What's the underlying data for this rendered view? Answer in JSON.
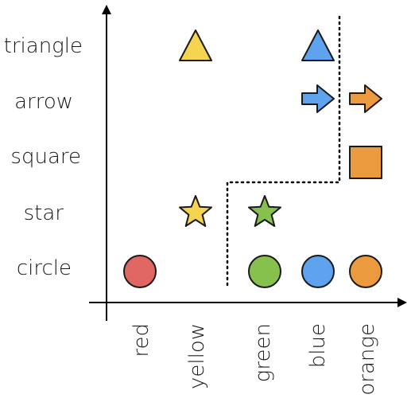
{
  "rows": [
    {
      "key": "triangle",
      "label": "triangle"
    },
    {
      "key": "arrow",
      "label": "arrow"
    },
    {
      "key": "square",
      "label": "square"
    },
    {
      "key": "star",
      "label": "star"
    },
    {
      "key": "circle",
      "label": "circle"
    }
  ],
  "columns": [
    {
      "key": "red",
      "label": "red",
      "color": "#e06763"
    },
    {
      "key": "yellow",
      "label": "yellow",
      "color": "#f5d54f"
    },
    {
      "key": "green",
      "label": "green",
      "color": "#86c14d"
    },
    {
      "key": "blue",
      "label": "blue",
      "color": "#5fa2ee"
    },
    {
      "key": "orange",
      "label": "orange",
      "color": "#ec9a3e"
    }
  ],
  "items": [
    {
      "shape": "triangle",
      "color": "yellow"
    },
    {
      "shape": "triangle",
      "color": "blue"
    },
    {
      "shape": "arrow",
      "color": "blue"
    },
    {
      "shape": "arrow",
      "color": "orange"
    },
    {
      "shape": "square",
      "color": "orange"
    },
    {
      "shape": "star",
      "color": "yellow"
    },
    {
      "shape": "star",
      "color": "green"
    },
    {
      "shape": "circle",
      "color": "red"
    },
    {
      "shape": "circle",
      "color": "green"
    },
    {
      "shape": "circle",
      "color": "blue"
    },
    {
      "shape": "circle",
      "color": "orange"
    }
  ]
}
